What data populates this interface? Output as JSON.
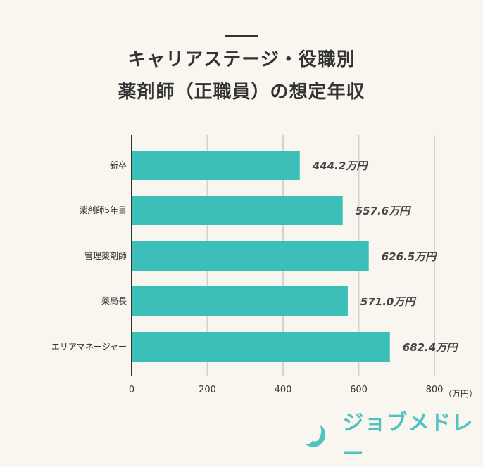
{
  "title_lines": [
    "キャリアステージ・役職別",
    "薬剤師（正職員）の想定年収"
  ],
  "logo": {
    "text": "ジョブメドレー",
    "color": "#4fc4bf"
  },
  "chart_data": {
    "type": "bar",
    "orientation": "horizontal",
    "categories": [
      "新卒",
      "薬剤師5年目",
      "管理薬剤師",
      "薬局長",
      "エリアマネージャー"
    ],
    "values": [
      444.2,
      557.6,
      626.5,
      571.0,
      682.4
    ],
    "data_labels": [
      "444.2万円",
      "557.6万円",
      "626.5万円",
      "571.0万円",
      "682.4万円"
    ],
    "x_ticks": [
      0,
      200,
      400,
      600,
      800
    ],
    "x_unit": "（万円）",
    "xlim": [
      0,
      800
    ],
    "grid": true,
    "bar_color": "#3bbfb8"
  }
}
